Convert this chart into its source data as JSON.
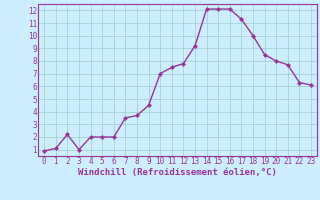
{
  "x": [
    0,
    1,
    2,
    3,
    4,
    5,
    6,
    7,
    8,
    9,
    10,
    11,
    12,
    13,
    14,
    15,
    16,
    17,
    18,
    19,
    20,
    21,
    22,
    23
  ],
  "y": [
    0.9,
    1.1,
    2.2,
    1.0,
    2.0,
    2.0,
    2.0,
    3.5,
    3.7,
    4.5,
    7.0,
    7.5,
    7.8,
    9.2,
    12.1,
    12.1,
    12.1,
    11.3,
    10.0,
    8.5,
    8.0,
    7.7,
    6.3,
    6.1
  ],
  "line_color": "#993399",
  "marker": "D",
  "marker_size": 2,
  "linewidth": 1.0,
  "bg_color": "#cceeff",
  "grid_color": "#99cccc",
  "xlabel": "Windchill (Refroidissement éolien,°C)",
  "xlim": [
    -0.5,
    23.5
  ],
  "ylim": [
    0.5,
    12.5
  ],
  "xticks": [
    0,
    1,
    2,
    3,
    4,
    5,
    6,
    7,
    8,
    9,
    10,
    11,
    12,
    13,
    14,
    15,
    16,
    17,
    18,
    19,
    20,
    21,
    22,
    23
  ],
  "yticks": [
    1,
    2,
    3,
    4,
    5,
    6,
    7,
    8,
    9,
    10,
    11,
    12
  ],
  "xlabel_fontsize": 6.5,
  "tick_fontsize": 5.5,
  "tick_color": "#993399",
  "axis_color": "#993399",
  "spine_color": "#993399"
}
